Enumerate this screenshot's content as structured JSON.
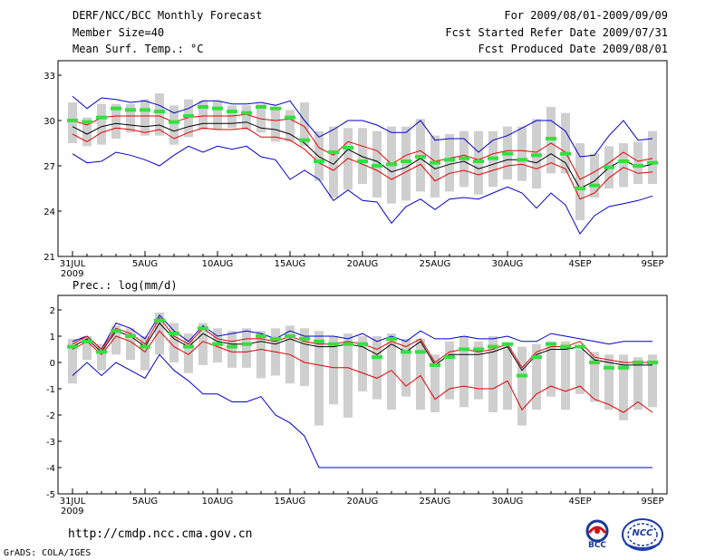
{
  "header": {
    "title": "DERF/NCC/BCC Monthly Forecast",
    "member_size": "Member Size=40",
    "variable1": "Mean Surf. Temp.: °C",
    "period": "For 2009/08/01-2009/09/09",
    "fcst_started": "Fcst Started Refer Date 2009/07/31",
    "fcst_produced": "Fcst Produced Date 2009/08/01"
  },
  "footer": {
    "url": "http://cmdp.ncc.cma.gov.cn",
    "credit": "GrADS: COLA/IGES",
    "logo1_text": "BCC",
    "logo2_text": "NCC"
  },
  "colors": {
    "box": "#cfcfcf",
    "mean": "#000000",
    "inner": "#e00000",
    "outer": "#0000c8",
    "obs": "#33e040"
  },
  "chart_data": [
    {
      "type": "line",
      "title": "Mean Surf. Temp.: °C",
      "x_tick_labels": [
        "31JUL",
        "5AUG",
        "10AUG",
        "15AUG",
        "20AUG",
        "25AUG",
        "30AUG",
        "4SEP",
        "9SEP"
      ],
      "x_tick_days": [
        0,
        5,
        10,
        15,
        20,
        25,
        30,
        35,
        40
      ],
      "x_year_label": "2009",
      "ylim": [
        21,
        33
      ],
      "y_ticks": [
        21,
        24,
        27,
        30,
        33
      ],
      "days": [
        0,
        1,
        2,
        3,
        4,
        5,
        6,
        7,
        8,
        9,
        10,
        11,
        12,
        13,
        14,
        15,
        16,
        17,
        18,
        19,
        20,
        21,
        22,
        23,
        24,
        25,
        26,
        27,
        28,
        29,
        30,
        31,
        32,
        33,
        34,
        35,
        36,
        37,
        38,
        39,
        40
      ],
      "series": [
        {
          "name": "box_high",
          "values": [
            31.2,
            30.2,
            31.1,
            31.1,
            31.1,
            31.4,
            31.8,
            31.0,
            31.4,
            31.3,
            31.3,
            31.0,
            31.0,
            31.1,
            30.8,
            30.7,
            31.2,
            29.3,
            29.6,
            29.5,
            29.5,
            29.3,
            29.6,
            29.6,
            30.1,
            29.0,
            29.1,
            29.3,
            29.3,
            29.3,
            29.6,
            29.6,
            30.1,
            30.9,
            30.5,
            28.5,
            27.8,
            28.3,
            28.5,
            28.6,
            29.3
          ]
        },
        {
          "name": "box_low",
          "values": [
            28.5,
            28.3,
            28.4,
            28.8,
            29.2,
            29.0,
            29.0,
            28.4,
            28.9,
            29.4,
            29.4,
            29.5,
            29.4,
            29.2,
            28.6,
            28.6,
            28.3,
            26.0,
            24.9,
            25.4,
            25.8,
            24.9,
            24.5,
            24.7,
            25.3,
            24.9,
            25.3,
            25.6,
            25.1,
            25.6,
            26.1,
            26.0,
            25.5,
            26.5,
            26.5,
            23.4,
            24.9,
            25.5,
            25.6,
            25.8,
            25.8
          ]
        },
        {
          "name": "max",
          "values": [
            31.6,
            30.8,
            31.5,
            31.4,
            31.2,
            31.3,
            31.0,
            30.5,
            30.8,
            31.3,
            31.3,
            31.1,
            31.1,
            31.2,
            31.0,
            31.3,
            30.0,
            28.9,
            29.4,
            30.0,
            30.0,
            29.7,
            29.2,
            29.2,
            30.0,
            28.7,
            28.8,
            28.8,
            27.9,
            28.7,
            29.0,
            29.5,
            30.0,
            30.0,
            29.3,
            27.6,
            27.7,
            29.0,
            30.0,
            28.7,
            28.8
          ]
        },
        {
          "name": "upper",
          "values": [
            30.0,
            29.7,
            30.2,
            30.3,
            30.3,
            30.3,
            30.3,
            29.9,
            30.2,
            30.3,
            30.3,
            30.3,
            30.4,
            30.1,
            30.0,
            30.1,
            29.6,
            28.2,
            27.7,
            28.6,
            28.3,
            28.0,
            27.1,
            27.7,
            28.0,
            27.3,
            27.5,
            27.7,
            27.4,
            27.8,
            28.0,
            28.0,
            27.9,
            28.5,
            27.9,
            26.1,
            26.6,
            27.2,
            27.9,
            27.3,
            27.5
          ]
        },
        {
          "name": "mean",
          "values": [
            29.6,
            29.1,
            29.6,
            29.8,
            29.7,
            29.6,
            29.7,
            29.3,
            29.6,
            29.8,
            29.8,
            29.8,
            29.9,
            29.5,
            29.4,
            29.1,
            28.5,
            27.6,
            27.1,
            28.1,
            27.6,
            27.3,
            26.6,
            26.9,
            27.5,
            26.8,
            27.1,
            27.3,
            26.8,
            27.1,
            27.4,
            27.4,
            27.2,
            27.8,
            27.2,
            25.5,
            26.0,
            26.9,
            27.4,
            26.9,
            27.1
          ]
        },
        {
          "name": "lower",
          "values": [
            29.1,
            28.6,
            29.2,
            29.5,
            29.4,
            29.2,
            29.4,
            28.8,
            29.2,
            29.5,
            29.4,
            29.4,
            29.5,
            28.9,
            28.9,
            28.7,
            28.1,
            27.2,
            26.7,
            27.5,
            27.1,
            26.7,
            26.1,
            26.6,
            27.1,
            26.0,
            26.5,
            26.7,
            26.4,
            26.7,
            27.0,
            27.1,
            26.8,
            27.2,
            26.8,
            24.8,
            25.2,
            26.2,
            26.9,
            26.5,
            26.6
          ]
        },
        {
          "name": "min",
          "values": [
            27.8,
            27.2,
            27.3,
            27.9,
            27.7,
            27.4,
            27.0,
            27.7,
            28.3,
            27.9,
            28.3,
            28.1,
            28.3,
            27.6,
            27.4,
            26.1,
            26.7,
            26.1,
            24.7,
            25.4,
            24.7,
            24.6,
            23.2,
            24.3,
            24.8,
            24.1,
            24.8,
            24.9,
            24.8,
            25.2,
            25.6,
            25.2,
            24.2,
            25.2,
            24.4,
            22.5,
            23.7,
            24.3,
            24.5,
            24.7,
            25.0
          ]
        },
        {
          "name": "observed",
          "values": [
            30.0,
            29.9,
            30.2,
            30.8,
            30.7,
            30.7,
            30.6,
            29.9,
            30.3,
            30.9,
            30.8,
            30.6,
            30.5,
            30.9,
            30.8,
            30.2,
            28.7,
            27.3,
            27.9,
            28.2,
            27.3,
            27.0,
            27.1,
            27.3,
            27.6,
            27.2,
            27.4,
            27.5,
            27.3,
            27.5,
            27.8,
            27.4,
            27.7,
            28.8,
            27.8,
            25.5,
            25.7,
            26.9,
            27.3,
            27.0,
            27.2
          ]
        }
      ]
    },
    {
      "type": "line",
      "title": "Prec.: log(mm/d)",
      "x_tick_labels": [
        "31JUL",
        "5AUG",
        "10AUG",
        "15AUG",
        "20AUG",
        "25AUG",
        "30AUG",
        "4SEP",
        "9SEP"
      ],
      "x_tick_days": [
        0,
        5,
        10,
        15,
        20,
        25,
        30,
        35,
        40
      ],
      "x_year_label": "2009",
      "ylim": [
        -5,
        2
      ],
      "y_ticks": [
        -5,
        -4,
        -3,
        -2,
        -1,
        0,
        1,
        2
      ],
      "days": [
        0,
        1,
        2,
        3,
        4,
        5,
        6,
        7,
        8,
        9,
        10,
        11,
        12,
        13,
        14,
        15,
        16,
        17,
        18,
        19,
        20,
        21,
        22,
        23,
        24,
        25,
        26,
        27,
        28,
        29,
        30,
        31,
        32,
        33,
        34,
        35,
        36,
        37,
        38,
        39,
        40
      ],
      "series": [
        {
          "name": "box_high",
          "values": [
            0.9,
            1.0,
            0.7,
            1.4,
            1.3,
            1.0,
            1.9,
            1.5,
            1.1,
            1.5,
            1.3,
            1.2,
            1.3,
            1.2,
            1.3,
            1.4,
            1.3,
            1.2,
            1.0,
            1.1,
            1.0,
            1.0,
            1.1,
            0.9,
            0.9,
            0.3,
            0.8,
            1.0,
            0.8,
            1.0,
            0.7,
            0.6,
            0.7,
            0.8,
            0.8,
            0.5,
            0.4,
            0.3,
            0.3,
            0.2,
            0.3
          ]
        },
        {
          "name": "box_low",
          "values": [
            -0.8,
            0.1,
            -0.3,
            0.3,
            0.1,
            -0.3,
            0.3,
            0.0,
            -0.4,
            -0.1,
            0.0,
            -0.2,
            -0.2,
            -0.6,
            -0.5,
            -0.8,
            -0.9,
            -2.4,
            -1.6,
            -2.1,
            -1.1,
            -1.4,
            -1.8,
            -1.3,
            -1.8,
            -1.9,
            -1.4,
            -1.7,
            -1.4,
            -1.9,
            -1.8,
            -2.4,
            -1.8,
            -1.3,
            -1.8,
            -1.2,
            -1.5,
            -1.8,
            -2.2,
            -1.8,
            -1.7
          ]
        },
        {
          "name": "max",
          "values": [
            0.8,
            1.0,
            0.5,
            1.5,
            1.3,
            0.9,
            1.8,
            1.2,
            0.8,
            1.4,
            1.0,
            1.1,
            1.2,
            1.1,
            0.9,
            1.2,
            1.0,
            1.0,
            1.0,
            0.9,
            1.1,
            0.8,
            1.0,
            0.8,
            1.2,
            0.9,
            0.9,
            1.0,
            0.9,
            0.9,
            1.0,
            0.8,
            0.8,
            1.1,
            1.0,
            0.9,
            0.8,
            0.7,
            0.8,
            0.8,
            0.8
          ]
        },
        {
          "name": "upper",
          "values": [
            0.7,
            1.0,
            0.5,
            1.3,
            1.1,
            0.7,
            1.7,
            1.0,
            0.7,
            1.3,
            0.9,
            0.8,
            0.9,
            0.9,
            0.8,
            1.0,
            0.8,
            0.7,
            0.7,
            0.8,
            0.7,
            0.5,
            0.8,
            0.6,
            0.9,
            0.0,
            0.4,
            0.5,
            0.4,
            0.5,
            0.7,
            -0.2,
            0.4,
            0.6,
            0.6,
            0.8,
            0.2,
            0.1,
            0.0,
            0.0,
            0.0
          ]
        },
        {
          "name": "mean",
          "values": [
            0.6,
            0.9,
            0.4,
            1.2,
            1.0,
            0.6,
            1.5,
            0.9,
            0.6,
            1.1,
            0.8,
            0.7,
            0.7,
            0.8,
            0.7,
            0.9,
            0.7,
            0.6,
            0.6,
            0.7,
            0.6,
            0.3,
            0.7,
            0.4,
            0.8,
            -0.1,
            0.3,
            0.3,
            0.3,
            0.4,
            0.6,
            -0.3,
            0.3,
            0.5,
            0.5,
            0.6,
            0.1,
            0.0,
            -0.1,
            -0.1,
            -0.1
          ]
        },
        {
          "name": "lower",
          "values": [
            0.5,
            0.8,
            0.3,
            1.0,
            0.8,
            0.4,
            1.2,
            0.6,
            0.3,
            0.8,
            0.6,
            0.4,
            0.4,
            0.5,
            0.4,
            0.3,
            0.0,
            -0.1,
            -0.2,
            -0.2,
            -0.4,
            -0.6,
            -0.3,
            -0.9,
            -0.5,
            -1.4,
            -1.0,
            -0.9,
            -1.0,
            -1.0,
            -0.7,
            -1.8,
            -1.2,
            -0.9,
            -1.1,
            -0.9,
            -1.4,
            -1.6,
            -1.9,
            -1.5,
            -1.9
          ]
        },
        {
          "name": "min",
          "values": [
            -0.5,
            0.0,
            -0.5,
            0.0,
            -0.3,
            -0.6,
            0.3,
            -0.3,
            -0.7,
            -1.2,
            -1.2,
            -1.5,
            -1.5,
            -1.3,
            -2.0,
            -2.3,
            -2.8,
            -4.0,
            -4.0,
            -4.0,
            -4.0,
            -4.0,
            -4.0,
            -4.0,
            -4.0,
            -4.0,
            -4.0,
            -4.0,
            -4.0,
            -4.0,
            -4.0,
            -4.0,
            -4.0,
            -4.0,
            -4.0,
            -4.0,
            -4.0,
            -4.0,
            -4.0,
            -4.0,
            -4.0
          ]
        },
        {
          "name": "observed",
          "values": [
            0.6,
            0.8,
            0.4,
            1.2,
            1.0,
            0.6,
            1.6,
            1.1,
            0.6,
            1.3,
            0.7,
            0.6,
            0.7,
            1.0,
            0.9,
            1.0,
            0.9,
            0.8,
            0.7,
            0.7,
            0.7,
            0.2,
            0.9,
            0.4,
            0.4,
            -0.1,
            0.2,
            0.5,
            0.5,
            0.6,
            0.7,
            -0.5,
            0.2,
            0.7,
            0.6,
            0.6,
            0.0,
            -0.2,
            -0.2,
            0.0,
            0.0
          ]
        }
      ]
    }
  ]
}
